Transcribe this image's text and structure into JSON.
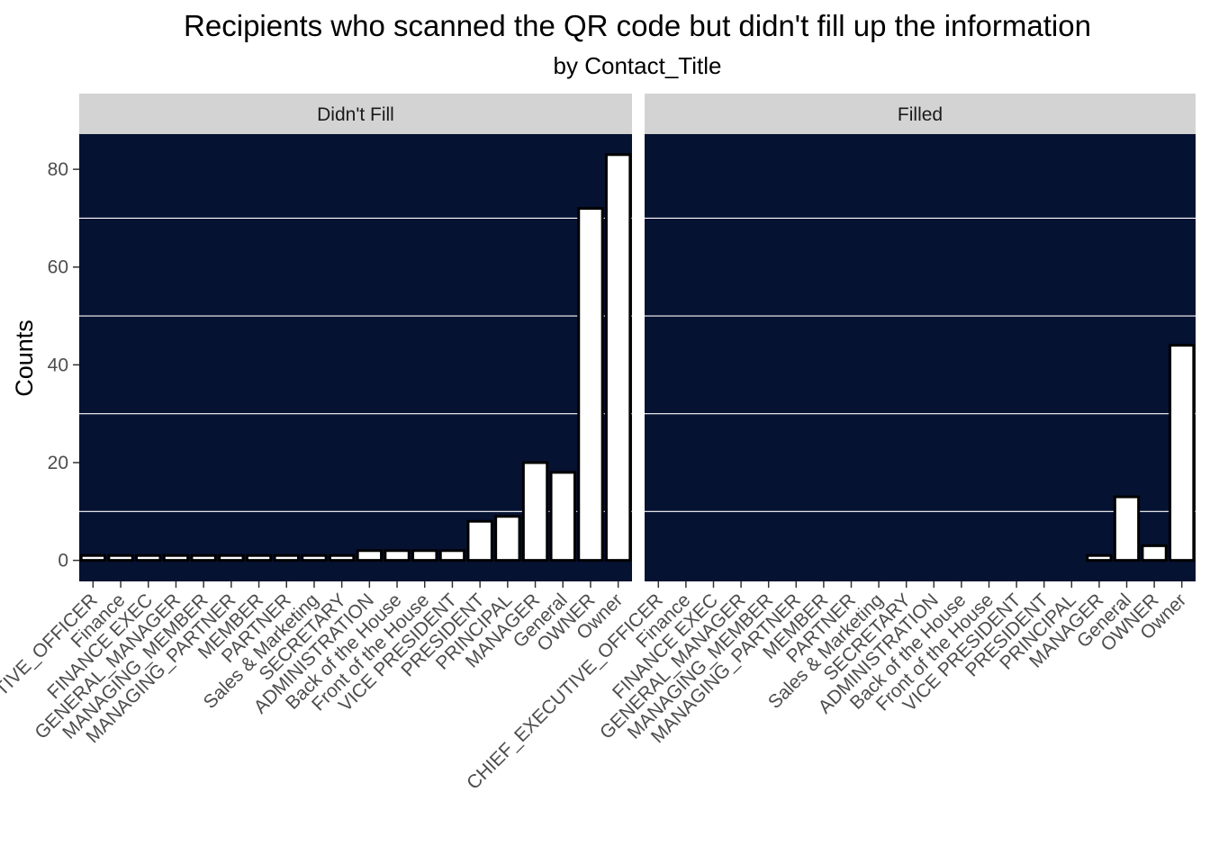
{
  "chart_data": {
    "type": "bar",
    "title": "Recipients who scanned the QR code but didn't fill up the information",
    "subtitle": "by Contact_Title",
    "xlabel": "",
    "ylabel": "Counts",
    "ylim": [
      -4.3,
      87.2
    ],
    "yticks": [
      0,
      20,
      40,
      60,
      80
    ],
    "grid": true,
    "categories": [
      "CHIEF_EXECUTIVE_OFFICER",
      "Finance",
      "FINANCE EXEC",
      "GENERAL_MANAGER",
      "MANAGING_MEMBER",
      "MANAGING_PARTNER",
      "MEMBER",
      "PARTNER",
      "Sales & Marketing",
      "SECRETARY",
      "ADMINISTRATION",
      "Back of the House",
      "Front of the House",
      "VICE PRESIDENT",
      "PRESIDENT",
      "PRINCIPAL",
      "MANAGER",
      "General",
      "OWNER",
      "Owner"
    ],
    "series": [
      {
        "name": "Didn't Fill",
        "values": [
          1,
          1,
          1,
          1,
          1,
          1,
          1,
          1,
          1,
          1,
          2,
          2,
          2,
          2,
          8,
          9,
          20,
          18,
          72,
          83
        ]
      },
      {
        "name": "Filled",
        "values": [
          0,
          0,
          0,
          0,
          0,
          0,
          0,
          0,
          0,
          0,
          0,
          0,
          0,
          0,
          0,
          0,
          1,
          13,
          3,
          44
        ]
      }
    ],
    "colors": {
      "panel_bg": "#061232",
      "strip_bg": "#d3d3d3",
      "bar_fill": "#ffffff",
      "bar_stroke": "#000000",
      "grid": "#ffffff"
    }
  }
}
